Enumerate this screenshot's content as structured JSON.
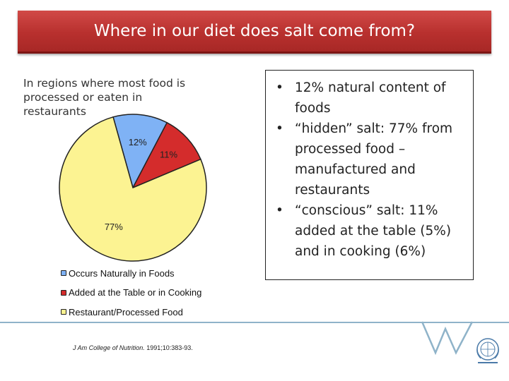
{
  "slide": {
    "title": "Where in our diet does salt come from?",
    "subtitle": "In regions where most food is processed or eaten in restaurants",
    "citation_journal": "J Am College of Nutrition.",
    "citation_ref": " 1991;10:383-93.",
    "bullets": [
      "12% natural content of foods",
      "“hidden” salt: 77% from processed food – manufactured and restaurants",
      "“conscious” salt: 11% added at the table (5%) and in cooking (6%)"
    ],
    "logo": "who-emblem-icon",
    "colors": {
      "title_bar": "#b8302e",
      "accent_line": "#8fb3c9",
      "logo": "#4a7aa8"
    }
  },
  "chart_data": {
    "type": "pie",
    "slices": [
      {
        "label": "12%",
        "value": 12,
        "color": "#7fb2f5",
        "legend": "Occurs Naturally in Foods"
      },
      {
        "label": "11%",
        "value": 11,
        "color": "#d42c2c",
        "legend": "Added at the Table or in Cooking"
      },
      {
        "label": "77%",
        "value": 77,
        "color": "#fcf392",
        "legend": "Restaurant/Processed Food"
      }
    ]
  }
}
